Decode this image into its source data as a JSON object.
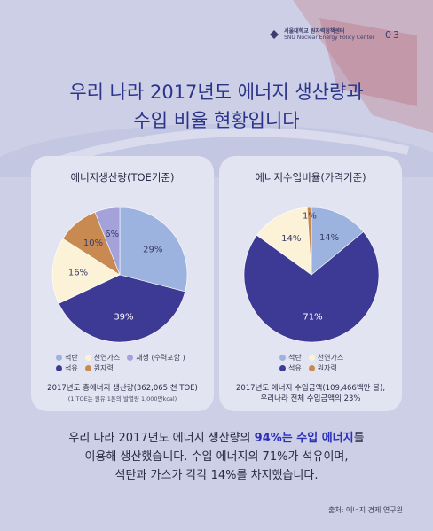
{
  "header": {
    "logo_line1": "서울대학교 원자력정책센터",
    "logo_line2": "SNU Nuclear Energy Policy Center",
    "page_number": "03"
  },
  "title": {
    "line1": "우리 나라 2017년도 에너지 생산량과",
    "line2": "수입 비율 현황입니다"
  },
  "colors": {
    "coal": "#9db3df",
    "gas": "#fcf2d8",
    "renewable": "#a4a2d8",
    "oil": "#3d3a95",
    "nuclear": "#c98a52",
    "background": "#cdcfe6",
    "card": "#e3e4f1",
    "title": "#2a358a",
    "highlight": "#2c2fb8"
  },
  "chart_data": [
    {
      "type": "pie",
      "title": "에너지생산량(TOE기준)",
      "categories": [
        "석탄",
        "석유",
        "천연가스",
        "원자력",
        "재생 (수력포함 )"
      ],
      "values": [
        29,
        39,
        16,
        10,
        6
      ],
      "labels": [
        "29%",
        "39%",
        "16%",
        "10%",
        "6%"
      ],
      "legend": [
        "석탄",
        "천연가스",
        "재생 (수력포함 )",
        "석유",
        "원자력"
      ],
      "note": "2017년도 총에너지 생산량(362,065 천 TOE)",
      "note_small": "(1 TOE는 원유 1톤의 발열량 1,000만kcal)"
    },
    {
      "type": "pie",
      "title": "에너지수입비율(가격기준)",
      "categories": [
        "석탄",
        "석유",
        "천연가스",
        "원자력"
      ],
      "values": [
        14,
        71,
        14,
        1
      ],
      "labels": [
        "14%",
        "71%",
        "14%",
        "1%"
      ],
      "legend": [
        "석탄",
        "천연가스",
        "석유",
        "원자력"
      ],
      "note_line1": "2017년도 에너지 수입금액(109,466백만 불),",
      "note_line2": "우리나라 전체 수입금액의 23%"
    }
  ],
  "body": {
    "line1_a": "우리 나라 2017년도 에너지 생산량의 ",
    "line1_hl": "94%는 수입 에너지",
    "line1_b": "를",
    "line2": "이용해 생산했습니다. 수입 에너지의 71%가 석유이며,",
    "line3": "석탄과 가스가 각각 14%를 차지했습니다."
  },
  "source": "출처: 에너지 경제 연구원"
}
